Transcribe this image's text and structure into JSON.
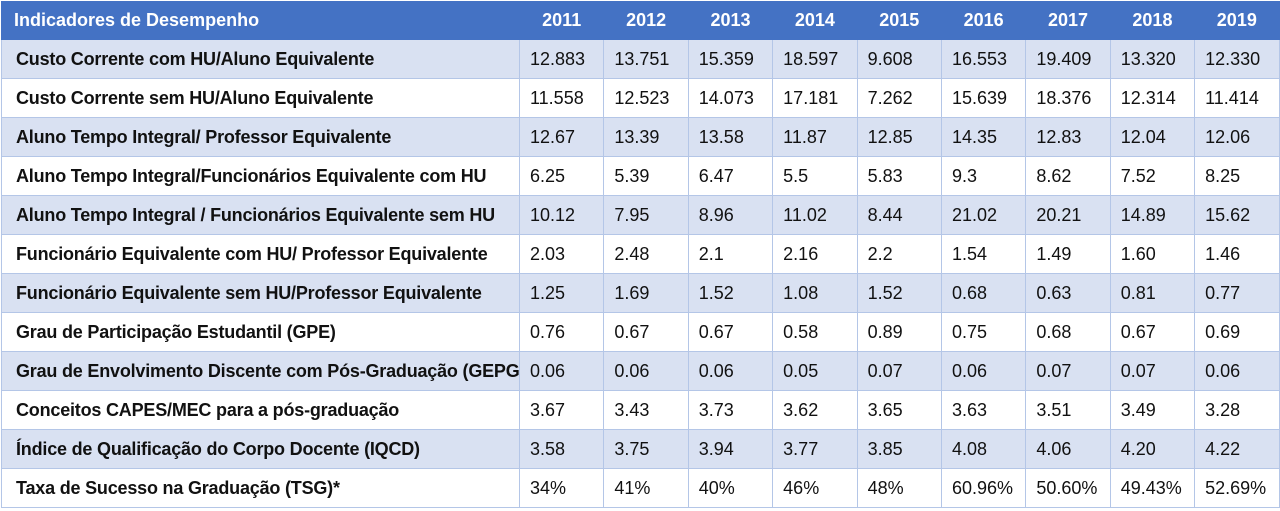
{
  "table": {
    "header_label": "Indicadores de Desempenho",
    "years": [
      "2011",
      "2012",
      "2013",
      "2014",
      "2015",
      "2016",
      "2017",
      "2018",
      "2019"
    ],
    "rows": [
      {
        "name": "Custo Corrente com HU/Aluno Equivalente",
        "values": [
          "12.883",
          "13.751",
          "15.359",
          "18.597",
          "9.608",
          "16.553",
          "19.409",
          "13.320",
          "12.330"
        ]
      },
      {
        "name": "Custo Corrente sem HU/Aluno Equivalente",
        "values": [
          "11.558",
          "12.523",
          "14.073",
          "17.181",
          "7.262",
          "15.639",
          "18.376",
          "12.314",
          "11.414"
        ]
      },
      {
        "name": "Aluno Tempo Integral/ Professor Equivalente",
        "values": [
          "12.67",
          "13.39",
          "13.58",
          "11.87",
          "12.85",
          "14.35",
          "12.83",
          "12.04",
          "12.06"
        ]
      },
      {
        "name": "Aluno Tempo Integral/Funcionários Equivalente com HU",
        "values": [
          "6.25",
          "5.39",
          "6.47",
          "5.5",
          "5.83",
          "9.3",
          "8.62",
          "7.52",
          "8.25"
        ]
      },
      {
        "name": "Aluno Tempo Integral / Funcionários Equivalente sem HU",
        "values": [
          "10.12",
          "7.95",
          "8.96",
          "11.02",
          "8.44",
          "21.02",
          "20.21",
          "14.89",
          "15.62"
        ]
      },
      {
        "name": "Funcionário Equivalente com HU/ Professor Equivalente",
        "values": [
          "2.03",
          "2.48",
          "2.1",
          "2.16",
          "2.2",
          "1.54",
          "1.49",
          "1.60",
          "1.46"
        ]
      },
      {
        "name": "Funcionário Equivalente sem HU/Professor Equivalente",
        "values": [
          "1.25",
          "1.69",
          "1.52",
          "1.08",
          "1.52",
          "0.68",
          "0.63",
          "0.81",
          "0.77"
        ]
      },
      {
        "name": "Grau de Participação Estudantil (GPE)",
        "values": [
          "0.76",
          "0.67",
          "0.67",
          "0.58",
          "0.89",
          "0.75",
          "0.68",
          "0.67",
          "0.69"
        ]
      },
      {
        "name": "Grau de Envolvimento Discente com Pós-Graduação (GEPG)",
        "values": [
          "0.06",
          "0.06",
          "0.06",
          "0.05",
          "0.07",
          "0.06",
          "0.07",
          "0.07",
          "0.06"
        ]
      },
      {
        "name": "Conceitos CAPES/MEC para a pós-graduação",
        "values": [
          "3.67",
          "3.43",
          "3.73",
          "3.62",
          "3.65",
          "3.63",
          "3.51",
          "3.49",
          "3.28"
        ]
      },
      {
        "name": "Índice de Qualificação do Corpo Docente (IQCD)",
        "values": [
          "3.58",
          "3.75",
          "3.94",
          "3.77",
          "3.85",
          "4.08",
          "4.06",
          "4.20",
          "4.22"
        ]
      },
      {
        "name": "Taxa de Sucesso na Graduação (TSG)*",
        "values": [
          "34%",
          "41%",
          "40%",
          "46%",
          "48%",
          "60.96%",
          "50.60%",
          "49.43%",
          "52.69%"
        ]
      }
    ]
  },
  "colors": {
    "header_bg": "#4472c4",
    "header_text": "#ffffff",
    "band_bg": "#d9e1f2",
    "plain_bg": "#ffffff",
    "border": "#b4c6e7"
  }
}
